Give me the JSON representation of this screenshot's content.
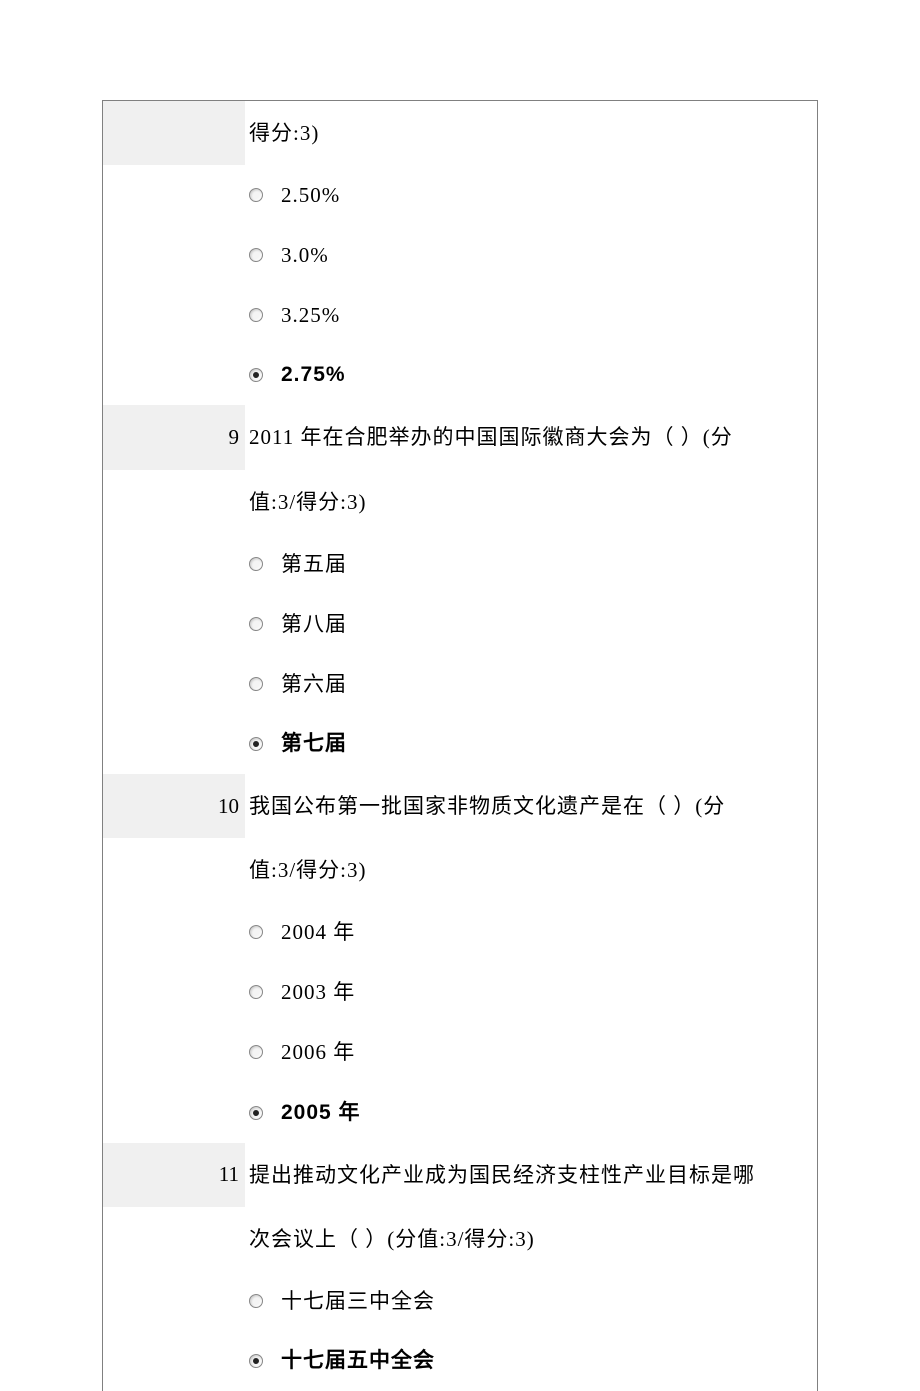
{
  "questions": [
    {
      "number": "",
      "shaded_first_only": true,
      "text_lines": [
        "得分:3)"
      ],
      "options": [
        {
          "label": "2.50%",
          "selected": false
        },
        {
          "label": "3.0%",
          "selected": false
        },
        {
          "label": "3.25%",
          "selected": false
        },
        {
          "label": "2.75%",
          "selected": true
        }
      ]
    },
    {
      "number": "9",
      "shaded_first_only": true,
      "text_lines": [
        "2011 年在合肥举办的中国国际徽商大会为（ ）(分",
        "值:3/得分:3)"
      ],
      "options": [
        {
          "label": "第五届",
          "selected": false
        },
        {
          "label": "第八届",
          "selected": false
        },
        {
          "label": "第六届",
          "selected": false
        },
        {
          "label": "第七届",
          "selected": true
        }
      ]
    },
    {
      "number": "10",
      "shaded_first_only": true,
      "text_lines": [
        "我国公布第一批国家非物质文化遗产是在（ ）(分",
        "值:3/得分:3)"
      ],
      "options": [
        {
          "label": "2004 年",
          "selected": false
        },
        {
          "label": "2003 年",
          "selected": false
        },
        {
          "label": "2006 年",
          "selected": false
        },
        {
          "label": "2005 年",
          "selected": true
        }
      ]
    },
    {
      "number": "11",
      "shaded_first_only": true,
      "text_lines": [
        "提出推动文化产业成为国民经济支柱性产业目标是哪",
        "次会议上（ ）(分值:3/得分:3)"
      ],
      "options": [
        {
          "label": "十七届三中全会",
          "selected": false
        },
        {
          "label": "十七届五中全会",
          "selected": true
        }
      ]
    }
  ]
}
